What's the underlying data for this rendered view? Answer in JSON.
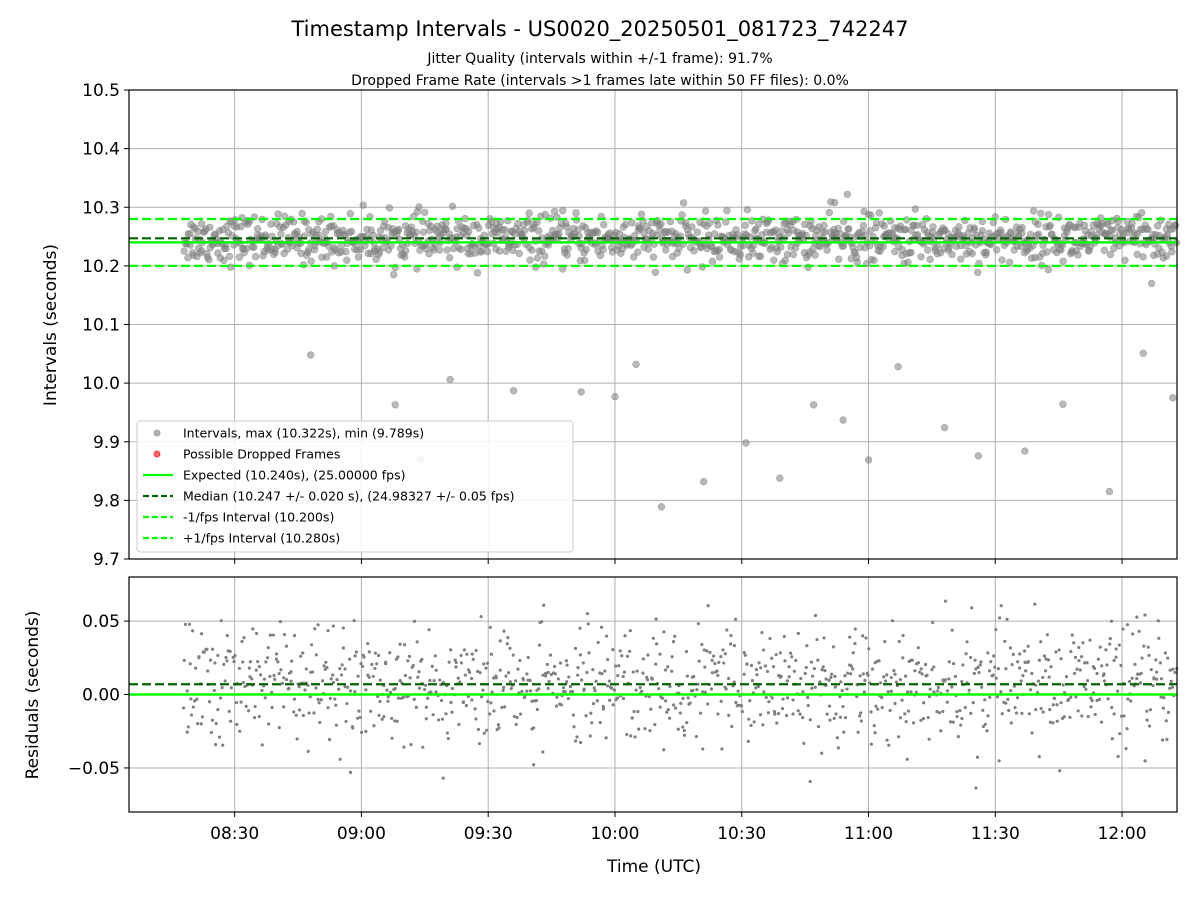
{
  "title": "Timestamp Intervals - US0020_20250501_081723_742247",
  "subtitles": [
    "Jitter Quality (intervals within +/-1 frame): 91.7%",
    "Dropped Frame Rate (intervals >1 frames late within 50 FF files): 0.0%"
  ],
  "colors": {
    "points": "#808080",
    "dropped": "#ff0000",
    "expected": "#00ff00",
    "median": "#006400",
    "grid": "#b0b0b0"
  },
  "chart_data": [
    {
      "type": "scatter",
      "ylabel": "Intervals (seconds)",
      "ylim": [
        9.7,
        10.5
      ],
      "yticks": [
        "9.7",
        "9.8",
        "9.9",
        "10.0",
        "10.1",
        "10.2",
        "10.3",
        "10.4",
        "10.5"
      ],
      "grid": true,
      "legend_placement": "lower-left",
      "legend": [
        "Intervals, max (10.322s), min (9.789s)",
        "Possible Dropped Frames",
        "Expected (10.240s), (25.00000 fps)",
        "Median (10.247 +/- 0.020 s), (24.98327 +/- 0.05 fps)",
        "-1/fps Interval (10.200s)",
        "+1/fps Interval (10.280s)"
      ],
      "lines": {
        "expected": 10.24,
        "median": 10.247,
        "minus_one_fps": 10.2,
        "plus_one_fps": 10.28
      },
      "dense_band": {
        "center": 10.246,
        "spread": 0.02,
        "min": 10.185,
        "max": 10.322,
        "count": 1100
      },
      "x_range_utc": [
        "08:05",
        "12:13"
      ],
      "outliers": [
        {
          "time": "08:48",
          "value": 10.048
        },
        {
          "time": "09:08",
          "value": 9.963
        },
        {
          "time": "09:14",
          "value": 9.87
        },
        {
          "time": "09:21",
          "value": 10.006
        },
        {
          "time": "09:36",
          "value": 9.987
        },
        {
          "time": "09:52",
          "value": 9.985
        },
        {
          "time": "10:00",
          "value": 9.977
        },
        {
          "time": "10:05",
          "value": 10.032
        },
        {
          "time": "10:11",
          "value": 9.789
        },
        {
          "time": "10:21",
          "value": 9.832
        },
        {
          "time": "10:31",
          "value": 9.898
        },
        {
          "time": "10:39",
          "value": 9.838
        },
        {
          "time": "10:47",
          "value": 9.963
        },
        {
          "time": "10:54",
          "value": 9.937
        },
        {
          "time": "11:00",
          "value": 9.869
        },
        {
          "time": "11:07",
          "value": 10.028
        },
        {
          "time": "11:18",
          "value": 9.924
        },
        {
          "time": "11:26",
          "value": 9.876
        },
        {
          "time": "11:37",
          "value": 9.884
        },
        {
          "time": "11:46",
          "value": 9.964
        },
        {
          "time": "11:57",
          "value": 9.815
        },
        {
          "time": "12:05",
          "value": 10.051
        },
        {
          "time": "12:12",
          "value": 9.975
        },
        {
          "time": "12:07",
          "value": 10.17
        },
        {
          "time": "10:52",
          "value": 10.308
        },
        {
          "time": "10:55",
          "value": 10.322
        }
      ]
    },
    {
      "type": "scatter",
      "ylabel": "Residuals (seconds)",
      "xlabel": "Time (UTC)",
      "ylim": [
        -0.08,
        0.08
      ],
      "yticks": [
        "−0.05",
        "0.00",
        "0.05"
      ],
      "xticks": [
        "08:30",
        "09:00",
        "09:30",
        "10:00",
        "10:30",
        "11:00",
        "11:30",
        "12:00"
      ],
      "grid": true,
      "lines": {
        "zero": 0.0,
        "median_offset": 0.007
      },
      "dense_band": {
        "center": 0.006,
        "spread": 0.02,
        "min": -0.069,
        "max": 0.071,
        "count": 1100
      }
    }
  ]
}
